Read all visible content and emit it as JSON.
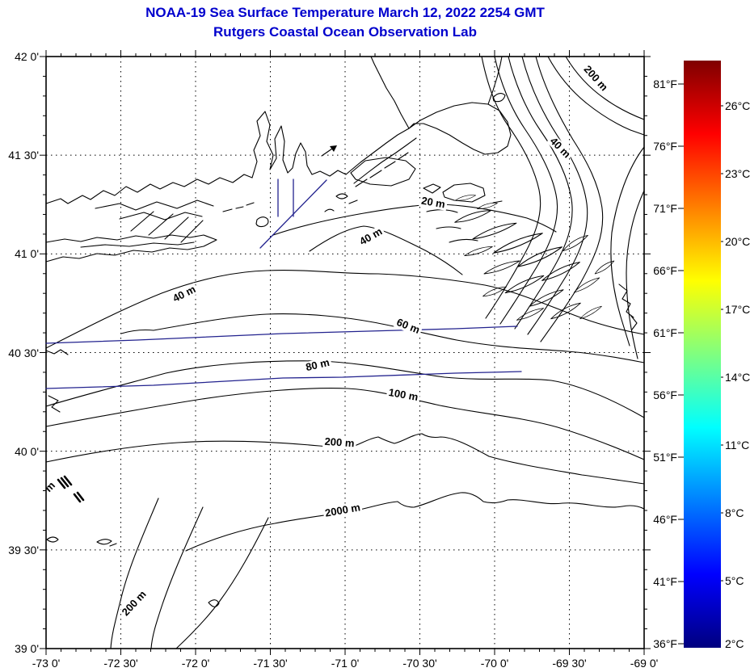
{
  "title": {
    "line1": "NOAA-19 Sea Surface Temperature March 12, 2022 2254 GMT",
    "line2": "Rutgers Coastal Ocean Observation Lab"
  },
  "colors": {
    "title_text": "#0000CD",
    "contour_lines": "#000000",
    "track_lines": "#22228E",
    "background": "#FFFFFF"
  },
  "axes": {
    "lat_labels": [
      "42 0'",
      "41 30'",
      "41 0'",
      "40 30'",
      "40 0'",
      "39 30'",
      "39 0'"
    ],
    "lon_labels": [
      "-73 0'",
      "-72 30'",
      "-72 0'",
      "-71 30'",
      "-71 0'",
      "-70 30'",
      "-70 0'",
      "-69 30'",
      "-69 0'"
    ]
  },
  "colorbar": {
    "fahrenheit": [
      "81°F",
      "76°F",
      "71°F",
      "66°F",
      "61°F",
      "56°F",
      "51°F",
      "46°F",
      "41°F",
      "36°F"
    ],
    "celsius": [
      "26°C",
      "23°C",
      "20°C",
      "17°C",
      "14°C",
      "11°C",
      "8°C",
      "5°C",
      "2°C"
    ],
    "range_celsius": [
      2,
      28
    ],
    "gradient_stops": [
      "#00007F",
      "#0000FF",
      "#00FFFF",
      "#FFFF00",
      "#FF0000",
      "#7F0000"
    ]
  },
  "contour_labels": [
    "200 m",
    "40 m",
    "20 m",
    "40 m",
    "40 m",
    "60 m",
    "80 m",
    "100 m",
    "200 m",
    "2000 m",
    "200 m",
    "m"
  ]
}
